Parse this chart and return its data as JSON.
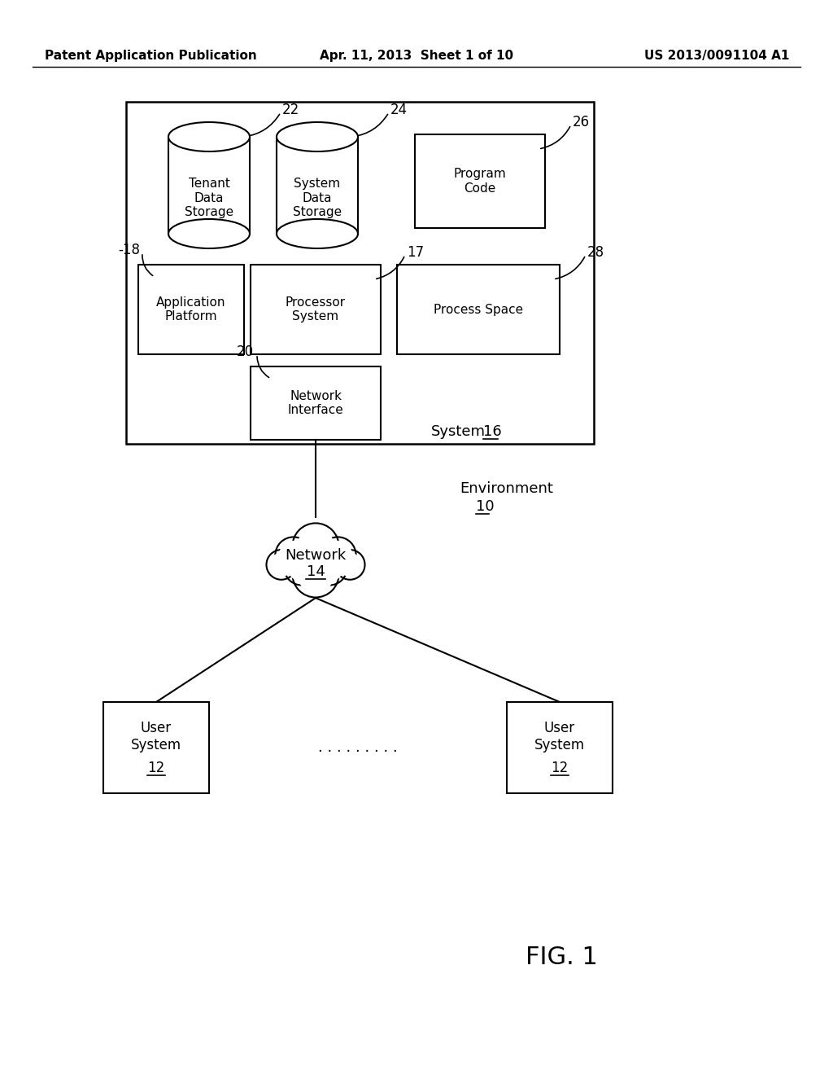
{
  "background_color": "#ffffff",
  "header_left": "Patent Application Publication",
  "header_center": "Apr. 11, 2013  Sheet 1 of 10",
  "header_right": "US 2013/0091104 A1",
  "fig_label": "FIG. 1",
  "environment_label": "Environment",
  "environment_num": "10",
  "system_label": "System",
  "system_num": "16",
  "network_label": "Network",
  "network_num": "14"
}
